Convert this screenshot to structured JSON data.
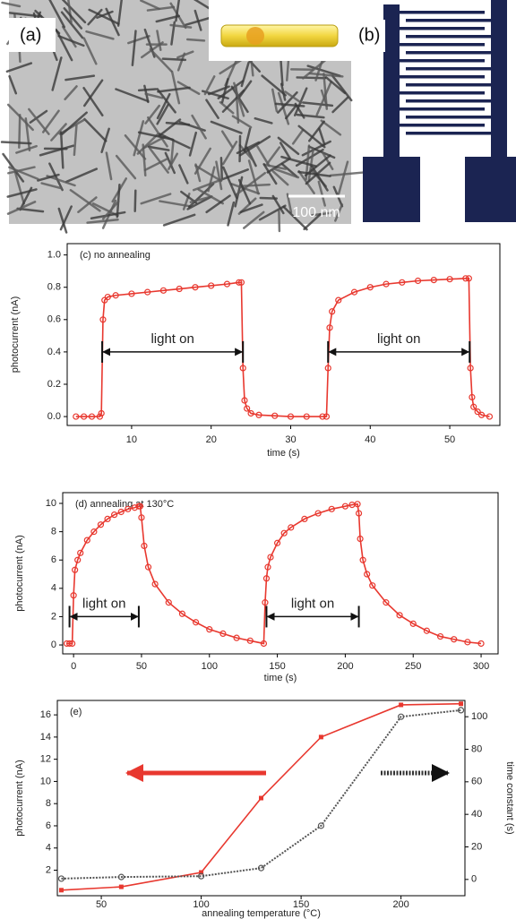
{
  "images": [
    {
      "label": "(a)",
      "scale_bar": "100 nm"
    },
    {
      "label": "(b)"
    }
  ],
  "chart_data": [
    {
      "type": "line",
      "title": "(c) no annealing",
      "xlabel": "time (s)",
      "ylabel": "photocurrent (nA)",
      "xlim": [
        1.9,
        56.3
      ],
      "ylim": [
        -0.055,
        1.07
      ],
      "xticks": [
        10,
        20,
        30,
        40,
        50
      ],
      "yticks": [
        {
          "value": 0,
          "label": "0.0"
        },
        0.2,
        0.4,
        0.6,
        0.8,
        {
          "value": 1,
          "label": "1.0"
        }
      ],
      "x": [
        3,
        4,
        5,
        6,
        6.2,
        6.4,
        6.6,
        7,
        8,
        10,
        12,
        14,
        16,
        18,
        20,
        22,
        23.5,
        23.8,
        24,
        24.2,
        24.5,
        25,
        26,
        28,
        30,
        32,
        34,
        34.5,
        34.7,
        34.9,
        35.2,
        36,
        38,
        40,
        42,
        44,
        46,
        48,
        50,
        52,
        52.4,
        52.6,
        52.8,
        53,
        53.5,
        54,
        55
      ],
      "series": [
        {
          "color": "#e8382f",
          "marker": "circle",
          "values": [
            0,
            0,
            0,
            0,
            0.02,
            0.6,
            0.72,
            0.74,
            0.75,
            0.76,
            0.77,
            0.78,
            0.79,
            0.8,
            0.81,
            0.82,
            0.83,
            0.83,
            0.3,
            0.1,
            0.05,
            0.02,
            0.01,
            0.005,
            0,
            0,
            0,
            0,
            0.3,
            0.55,
            0.65,
            0.72,
            0.77,
            0.8,
            0.82,
            0.83,
            0.84,
            0.845,
            0.85,
            0.855,
            0.855,
            0.3,
            0.12,
            0.06,
            0.03,
            0.01,
            0
          ]
        }
      ],
      "annotations": [
        {
          "text": "light on",
          "x": [
            6.3,
            24
          ],
          "y": 0.4
        },
        {
          "text": "light on",
          "x": [
            34.7,
            52.5
          ],
          "y": 0.4
        }
      ]
    },
    {
      "type": "line",
      "title": "(d) annealing at 130°C",
      "xlabel": "time (s)",
      "ylabel": "photocurrent (nA)",
      "xlim": [
        -8,
        312.5
      ],
      "ylim": [
        -0.63,
        10.76
      ],
      "xticks": [
        0,
        50,
        100,
        150,
        200,
        250,
        300
      ],
      "yticks": [
        0,
        2,
        4,
        6,
        8,
        10
      ],
      "x": [
        -5,
        -3,
        -1,
        0,
        1,
        3,
        5,
        10,
        15,
        20,
        25,
        30,
        35,
        40,
        45,
        48,
        49,
        50,
        52,
        55,
        60,
        70,
        80,
        90,
        100,
        110,
        120,
        130,
        140,
        141,
        142,
        143,
        145,
        150,
        155,
        160,
        170,
        180,
        190,
        200,
        205,
        209,
        210,
        211,
        213,
        216,
        220,
        230,
        240,
        250,
        260,
        270,
        280,
        290,
        300
      ],
      "series": [
        {
          "color": "#e8382f",
          "marker": "circle",
          "values": [
            0.1,
            0.1,
            0.1,
            3.5,
            5.3,
            6.0,
            6.5,
            7.4,
            8.0,
            8.5,
            8.9,
            9.2,
            9.4,
            9.6,
            9.7,
            9.8,
            9.8,
            9.0,
            7.0,
            5.5,
            4.3,
            3.0,
            2.2,
            1.6,
            1.1,
            0.8,
            0.5,
            0.3,
            0.1,
            3.0,
            4.7,
            5.5,
            6.2,
            7.2,
            7.9,
            8.3,
            8.9,
            9.3,
            9.6,
            9.8,
            9.9,
            9.95,
            9.3,
            7.5,
            6.0,
            5.0,
            4.2,
            3.0,
            2.1,
            1.5,
            1.0,
            0.6,
            0.4,
            0.2,
            0.1
          ]
        }
      ],
      "annotations": [
        {
          "text": "light on",
          "x": [
            -3,
            48
          ],
          "y": 2
        },
        {
          "text": "light on",
          "x": [
            142,
            210
          ],
          "y": 2
        }
      ]
    },
    {
      "type": "line",
      "title": "(e)",
      "xlabel": "annealing temperature (°C)",
      "ylabel": "photocurrent (nA)",
      "y2label": "time constant (s)",
      "xlim": [
        28,
        232
      ],
      "ylim": [
        -0.3,
        17.3
      ],
      "y2lim": [
        -10,
        110
      ],
      "xticks": [
        50,
        100,
        150,
        200
      ],
      "yticks": [
        2,
        4,
        6,
        8,
        10,
        12,
        14,
        16
      ],
      "y2ticks": [
        0,
        20,
        40,
        60,
        80,
        100
      ],
      "x": [
        30,
        60,
        100,
        130,
        160,
        200,
        230
      ],
      "series": [
        {
          "color": "#e8382f",
          "marker": "square",
          "values": [
            0.2,
            0.5,
            1.8,
            8.5,
            14.0,
            16.9,
            17.0
          ]
        },
        {
          "color": "#555555",
          "marker": "circle",
          "dashed": true,
          "axis": "y2",
          "values": [
            0.5,
            1.5,
            2,
            7,
            33,
            100,
            104
          ]
        }
      ],
      "annotations": []
    }
  ]
}
